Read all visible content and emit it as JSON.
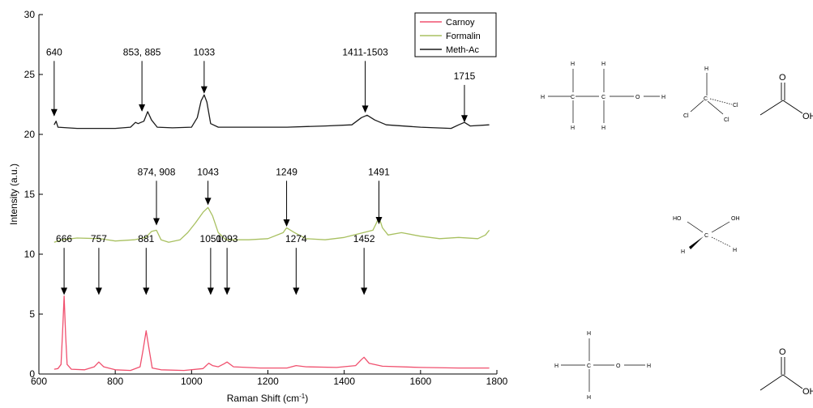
{
  "chart_data": {
    "type": "line",
    "xlabel": "Raman Shift (cm",
    "xlabel_sup": "-1",
    "xlabel_tail": ")",
    "ylabel": "Intensity (a.u.)",
    "xlim": [
      600,
      1800
    ],
    "ylim": [
      0,
      30
    ],
    "xticks": [
      600,
      800,
      1000,
      1200,
      1400,
      1600,
      1800
    ],
    "yticks": [
      0,
      5,
      10,
      15,
      20,
      25,
      30
    ],
    "legend_position": "top-right",
    "series": [
      {
        "name": "Carnoy",
        "color": "#f0506e",
        "points": [
          [
            640,
            0.4
          ],
          [
            650,
            0.45
          ],
          [
            658,
            0.8
          ],
          [
            662,
            3.5
          ],
          [
            666,
            6.5
          ],
          [
            670,
            3.2
          ],
          [
            674,
            0.8
          ],
          [
            685,
            0.4
          ],
          [
            720,
            0.35
          ],
          [
            745,
            0.6
          ],
          [
            757,
            1.0
          ],
          [
            770,
            0.6
          ],
          [
            800,
            0.35
          ],
          [
            840,
            0.3
          ],
          [
            865,
            0.6
          ],
          [
            873,
            2.0
          ],
          [
            881,
            3.6
          ],
          [
            889,
            2.0
          ],
          [
            897,
            0.5
          ],
          [
            920,
            0.35
          ],
          [
            980,
            0.3
          ],
          [
            1030,
            0.45
          ],
          [
            1045,
            0.9
          ],
          [
            1055,
            0.7
          ],
          [
            1070,
            0.6
          ],
          [
            1085,
            0.85
          ],
          [
            1093,
            1.0
          ],
          [
            1110,
            0.6
          ],
          [
            1180,
            0.5
          ],
          [
            1250,
            0.5
          ],
          [
            1274,
            0.7
          ],
          [
            1300,
            0.6
          ],
          [
            1380,
            0.55
          ],
          [
            1430,
            0.7
          ],
          [
            1445,
            1.2
          ],
          [
            1452,
            1.4
          ],
          [
            1465,
            0.9
          ],
          [
            1500,
            0.65
          ],
          [
            1600,
            0.55
          ],
          [
            1700,
            0.5
          ],
          [
            1780,
            0.5
          ]
        ]
      },
      {
        "name": "Formalin",
        "color": "#a8c060",
        "points": [
          [
            640,
            11.0
          ],
          [
            660,
            11.2
          ],
          [
            700,
            11.35
          ],
          [
            760,
            11.3
          ],
          [
            800,
            11.1
          ],
          [
            850,
            11.2
          ],
          [
            880,
            11.4
          ],
          [
            895,
            11.9
          ],
          [
            908,
            12.0
          ],
          [
            920,
            11.2
          ],
          [
            940,
            11.0
          ],
          [
            970,
            11.2
          ],
          [
            990,
            11.8
          ],
          [
            1010,
            12.6
          ],
          [
            1030,
            13.5
          ],
          [
            1043,
            13.9
          ],
          [
            1055,
            13.2
          ],
          [
            1070,
            11.8
          ],
          [
            1090,
            11.2
          ],
          [
            1150,
            11.2
          ],
          [
            1200,
            11.3
          ],
          [
            1240,
            11.8
          ],
          [
            1249,
            12.2
          ],
          [
            1270,
            11.8
          ],
          [
            1300,
            11.3
          ],
          [
            1350,
            11.2
          ],
          [
            1400,
            11.4
          ],
          [
            1450,
            11.8
          ],
          [
            1475,
            12.0
          ],
          [
            1483,
            12.5
          ],
          [
            1491,
            13.1
          ],
          [
            1500,
            12.2
          ],
          [
            1515,
            11.6
          ],
          [
            1550,
            11.8
          ],
          [
            1600,
            11.5
          ],
          [
            1650,
            11.3
          ],
          [
            1700,
            11.4
          ],
          [
            1750,
            11.3
          ],
          [
            1770,
            11.6
          ],
          [
            1780,
            12.0
          ]
        ]
      },
      {
        "name": "Meth-Ac",
        "color": "#1a1a1a",
        "points": [
          [
            640,
            20.8
          ],
          [
            645,
            21.1
          ],
          [
            650,
            20.6
          ],
          [
            700,
            20.5
          ],
          [
            800,
            20.5
          ],
          [
            840,
            20.6
          ],
          [
            853,
            21.0
          ],
          [
            860,
            20.9
          ],
          [
            875,
            21.1
          ],
          [
            885,
            21.9
          ],
          [
            895,
            21.2
          ],
          [
            910,
            20.6
          ],
          [
            950,
            20.55
          ],
          [
            1000,
            20.6
          ],
          [
            1015,
            21.4
          ],
          [
            1025,
            22.8
          ],
          [
            1033,
            23.3
          ],
          [
            1040,
            22.7
          ],
          [
            1050,
            20.9
          ],
          [
            1070,
            20.6
          ],
          [
            1150,
            20.6
          ],
          [
            1250,
            20.6
          ],
          [
            1350,
            20.7
          ],
          [
            1420,
            20.8
          ],
          [
            1445,
            21.4
          ],
          [
            1460,
            21.6
          ],
          [
            1480,
            21.2
          ],
          [
            1510,
            20.8
          ],
          [
            1600,
            20.6
          ],
          [
            1680,
            20.5
          ],
          [
            1700,
            20.8
          ],
          [
            1715,
            21.0
          ],
          [
            1730,
            20.7
          ],
          [
            1780,
            20.8
          ]
        ]
      }
    ],
    "annotations": [
      {
        "label": "640",
        "x": 640,
        "y_tip": 21.5,
        "y_text": 26.6
      },
      {
        "label": "853, 885",
        "x": 870,
        "y_tip": 21.9,
        "y_text": 26.6
      },
      {
        "label": "1033",
        "x": 1033,
        "y_tip": 23.4,
        "y_text": 26.6
      },
      {
        "label": "1411-1503",
        "x": 1455,
        "y_tip": 21.8,
        "y_text": 26.6
      },
      {
        "label": "1715",
        "x": 1715,
        "y_tip": 21.0,
        "y_text": 24.6
      },
      {
        "label": "874, 908",
        "x": 908,
        "y_tip": 12.4,
        "y_text": 16.6
      },
      {
        "label": "1043",
        "x": 1043,
        "y_tip": 14.1,
        "y_text": 16.6
      },
      {
        "label": "1249",
        "x": 1249,
        "y_tip": 12.3,
        "y_text": 16.6
      },
      {
        "label": "1491",
        "x": 1491,
        "y_tip": 12.5,
        "y_text": 16.6
      },
      {
        "label": "666",
        "x": 666,
        "y_tip": 6.6,
        "y_text": 11.0
      },
      {
        "label": "757",
        "x": 757,
        "y_tip": 6.6,
        "y_text": 11.0
      },
      {
        "label": "881",
        "x": 881,
        "y_tip": 6.6,
        "y_text": 11.0
      },
      {
        "label": "1050",
        "x": 1050,
        "y_tip": 6.6,
        "y_text": 11.0
      },
      {
        "label": "1093",
        "x": 1093,
        "y_tip": 6.6,
        "y_text": 11.0
      },
      {
        "label": "1274",
        "x": 1274,
        "y_tip": 6.6,
        "y_text": 11.0
      },
      {
        "label": "1452",
        "x": 1452,
        "y_tip": 6.6,
        "y_text": 11.0
      }
    ]
  },
  "structures": {
    "ethanol_top": {
      "atoms": [
        "H",
        "H",
        "H",
        "C",
        "C",
        "O",
        "H",
        "H",
        "H"
      ]
    },
    "chloroform": {
      "atoms": [
        "H",
        "C",
        "Cl",
        "Cl",
        "Cl"
      ]
    },
    "acetic_top": {
      "atoms": [
        "O",
        "OH"
      ]
    },
    "methanediol": {
      "atoms": [
        "HO",
        "OH",
        "C",
        "H",
        "H"
      ]
    },
    "methanol": {
      "atoms": [
        "H",
        "H",
        "C",
        "O",
        "H",
        "H"
      ]
    },
    "acetic_bottom": {
      "atoms": [
        "O",
        "OH"
      ]
    }
  }
}
